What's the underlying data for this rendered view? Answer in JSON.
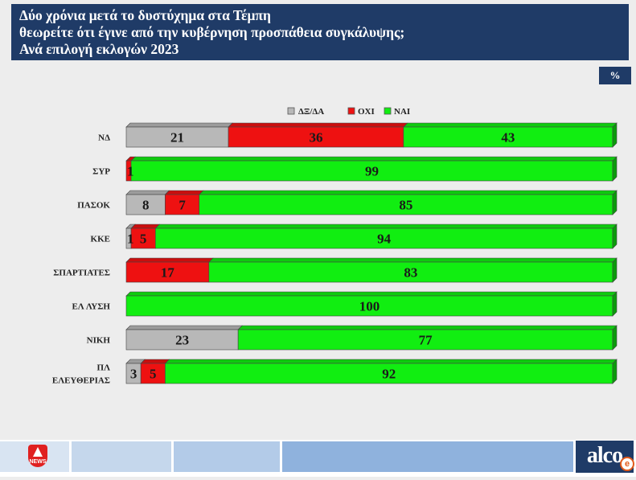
{
  "header": {
    "title_lines": [
      "Δύο χρόνια μετά το δυστύχημα στα Τέμπη",
      "θεωρείτε ότι έγινε  από την κυβέρνηση προσπάθεια συγκάλυψης;",
      "Ανά επιλογή εκλογών 2023"
    ]
  },
  "unit_badge": "%",
  "footer": {
    "left_logo_text": "NEWS",
    "right_logo_text": "alco",
    "right_badge_text": "e"
  },
  "chart_data": {
    "type": "bar",
    "orientation": "horizontal",
    "stacked": true,
    "categories": [
      [
        "ΝΔ"
      ],
      [
        "ΣΥΡ"
      ],
      [
        "ΠΑΣΟΚ"
      ],
      [
        "ΚΚΕ"
      ],
      [
        "ΣΠΑΡΤΙΑΤΕΣ"
      ],
      [
        "ΕΛ ΛΥΣΗ"
      ],
      [
        "ΝΙΚΗ"
      ],
      [
        "ΠΛ",
        "ΕΛΕΥΘΕΡΙΑΣ"
      ]
    ],
    "series": [
      {
        "name": "ΔΞ/ΔΑ",
        "color": "#b8b8b8",
        "values": [
          21,
          0,
          8,
          1,
          0,
          0,
          23,
          3
        ]
      },
      {
        "name": "ΟΧΙ",
        "color": "#ee1111",
        "values": [
          36,
          1,
          7,
          5,
          17,
          0,
          0,
          5
        ]
      },
      {
        "name": "ΝΑΙ",
        "color": "#11ee11",
        "values": [
          43,
          99,
          85,
          94,
          83,
          100,
          77,
          92
        ]
      }
    ],
    "data_labels": [
      [
        "21",
        "36",
        "43"
      ],
      [
        "",
        "1",
        "99"
      ],
      [
        "8",
        "7",
        "85"
      ],
      [
        "1",
        "5",
        "94"
      ],
      [
        "",
        "17",
        "83"
      ],
      [
        "",
        "",
        "100"
      ],
      [
        "23",
        "",
        "77"
      ],
      [
        "3",
        "5",
        "92"
      ]
    ],
    "xlim": [
      0,
      100
    ],
    "legend_position": "top",
    "grid": false
  }
}
